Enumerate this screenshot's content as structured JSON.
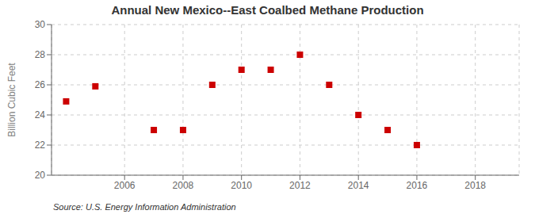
{
  "chart_data": {
    "type": "scatter",
    "title": "Annual New Mexico--East Coalbed Methane Production",
    "ylabel": "Billion Cubic Feet",
    "annotation": "Source: U.S. Energy Information Administration",
    "x": [
      2004,
      2005,
      2007,
      2008,
      2009,
      2010,
      2011,
      2012,
      2013,
      2014,
      2015,
      2016
    ],
    "values": [
      24.9,
      25.9,
      23.0,
      23.0,
      26.0,
      27.0,
      27.0,
      28.0,
      26.0,
      24.0,
      23.0,
      22.0
    ],
    "color": "#cc0000",
    "marker": "square",
    "xlim": [
      2003.5,
      2019.5
    ],
    "ylim": [
      20,
      30
    ],
    "xticks": [
      2006,
      2008,
      2010,
      2012,
      2014,
      2016,
      2018
    ],
    "yticks": [
      20,
      22,
      24,
      26,
      28,
      30
    ],
    "grid": true
  }
}
